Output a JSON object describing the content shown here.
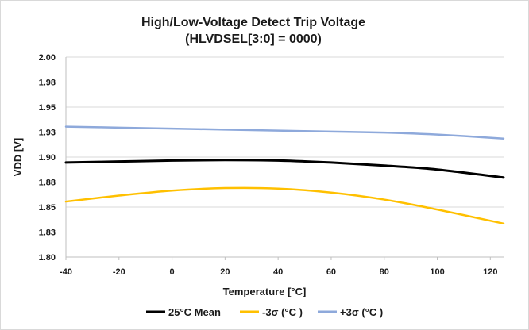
{
  "chart_data": {
    "type": "line",
    "title": "High/Low-Voltage Detect Trip Voltage",
    "subtitle": "(HLVDSEL[3:0] = 0000)",
    "xlabel": "Temperature [°C]",
    "ylabel": "VDD [V]",
    "xlim": [
      -40,
      125
    ],
    "ylim": [
      1.8,
      2.0
    ],
    "x_ticks": [
      -40,
      -20,
      0,
      20,
      40,
      60,
      80,
      100,
      120
    ],
    "y_ticks": [
      1.8,
      1.825,
      1.85,
      1.875,
      1.9,
      1.925,
      1.95,
      1.975,
      2.0
    ],
    "x_tick_labels": [
      "-40",
      "-20",
      "0",
      "20",
      "40",
      "60",
      "80",
      "100",
      "120"
    ],
    "y_tick_labels": [
      "1.80",
      "1.83",
      "1.85",
      "1.88",
      "1.90",
      "1.93",
      "1.95",
      "1.98",
      "2.00"
    ],
    "grid": "horizontal",
    "legend_position": "bottom",
    "x": [
      -40,
      -20,
      0,
      20,
      40,
      60,
      80,
      100,
      125
    ],
    "series": [
      {
        "name": "25°C Mean",
        "color": "#000000",
        "values": [
          1.8945,
          1.8955,
          1.8965,
          1.897,
          1.8965,
          1.8945,
          1.8915,
          1.8875,
          1.8795
        ]
      },
      {
        "name": "-3σ (°C )",
        "color": "#FFC000",
        "values": [
          1.8555,
          1.8615,
          1.8665,
          1.869,
          1.8685,
          1.8645,
          1.8575,
          1.8475,
          1.8335
        ]
      },
      {
        "name": "+3σ (°C )",
        "color": "#8EA9DB",
        "values": [
          1.9305,
          1.9295,
          1.9285,
          1.9275,
          1.9265,
          1.9255,
          1.9245,
          1.9225,
          1.9185
        ]
      }
    ]
  }
}
